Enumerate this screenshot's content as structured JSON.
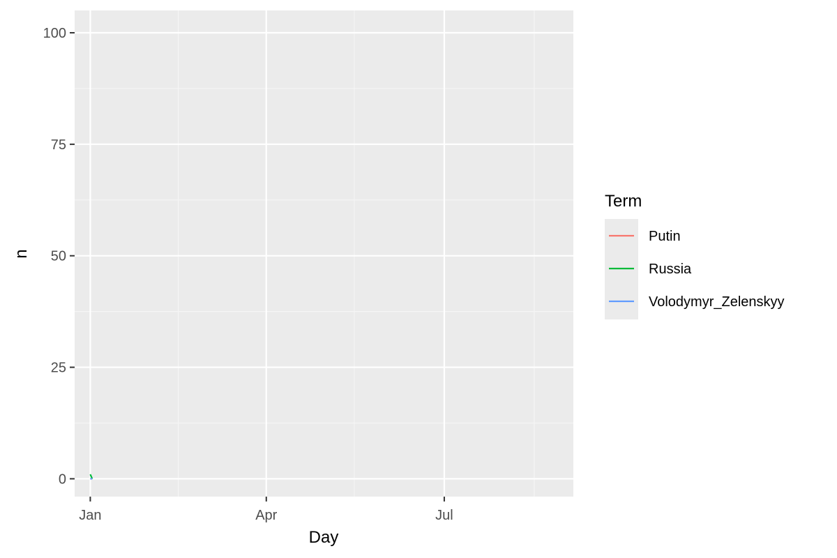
{
  "chart_data": {
    "type": "line",
    "xlabel": "Day",
    "ylabel": "n",
    "x_axis": {
      "kind": "date",
      "ticks": [
        {
          "label": "Jan",
          "date": "2022-01-01"
        },
        {
          "label": "Apr",
          "date": "2022-04-01"
        },
        {
          "label": "Jul",
          "date": "2022-07-01"
        }
      ],
      "minor_ticks": [
        "2022-02-15",
        "2022-05-16",
        "2022-08-16"
      ],
      "xlim": [
        "2021-12-24",
        "2022-09-05"
      ]
    },
    "y_axis": {
      "ticks": [
        0,
        25,
        50,
        75,
        100
      ],
      "ylim": [
        -4,
        105
      ]
    },
    "grid": true,
    "legend": {
      "title": "Term",
      "placement": "right"
    },
    "series": [
      {
        "name": "Putin",
        "color": "#F8766D",
        "x": [
          "2022-01-01",
          "2022-01-02"
        ],
        "values": [
          0,
          0
        ]
      },
      {
        "name": "Russia",
        "color": "#00BA38",
        "x": [
          "2022-01-01",
          "2022-01-02"
        ],
        "values": [
          1,
          0
        ]
      },
      {
        "name": "Volodymyr_Zelenskyy",
        "color": "#619CFF",
        "x": [
          "2022-01-01",
          "2022-01-02"
        ],
        "values": [
          0,
          0
        ]
      }
    ]
  }
}
